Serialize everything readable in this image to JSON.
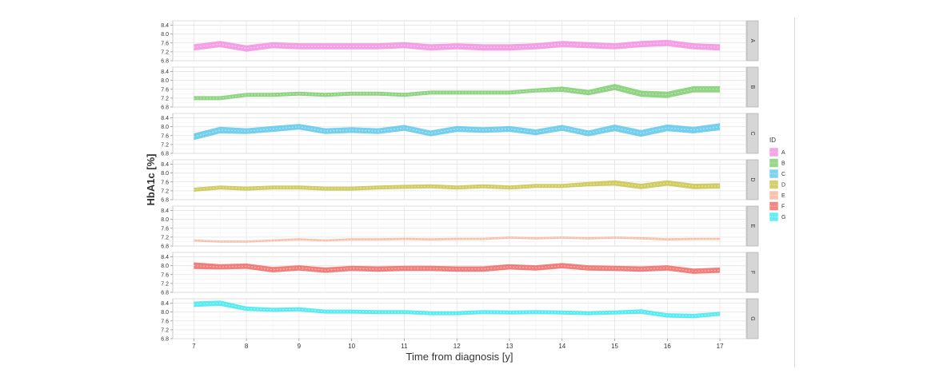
{
  "chart_data": {
    "type": "area",
    "xlabel": "Time from diagnosis [y]",
    "ylabel": "HbA1c [%]",
    "xlim": [
      6.6,
      17.5
    ],
    "ylim": [
      6.8,
      8.6
    ],
    "x_ticks": [
      7,
      8,
      9,
      10,
      11,
      12,
      13,
      14,
      15,
      16,
      17
    ],
    "y_ticks": [
      6.8,
      7.2,
      7.6,
      8.0,
      8.4
    ],
    "grid": true,
    "facets": "stacked, one panel per ID",
    "legend": {
      "title": "ID",
      "placement": "right"
    },
    "x": [
      7,
      7.5,
      8,
      8.5,
      9,
      9.5,
      10,
      10.5,
      11,
      11.5,
      12,
      12.5,
      13,
      13.5,
      14,
      14.5,
      15,
      15.5,
      16,
      16.5,
      17
    ],
    "series": [
      {
        "name": "A",
        "color": "#f28fe0",
        "mean": [
          7.4,
          7.55,
          7.35,
          7.5,
          7.45,
          7.45,
          7.45,
          7.45,
          7.5,
          7.4,
          7.45,
          7.4,
          7.4,
          7.45,
          7.55,
          7.5,
          7.45,
          7.55,
          7.6,
          7.45,
          7.4
        ],
        "halfwidth": [
          0.14,
          0.14,
          0.14,
          0.14,
          0.14,
          0.14,
          0.14,
          0.14,
          0.14,
          0.14,
          0.14,
          0.14,
          0.14,
          0.14,
          0.14,
          0.14,
          0.14,
          0.14,
          0.14,
          0.14,
          0.14
        ]
      },
      {
        "name": "B",
        "color": "#7dcc6e",
        "mean": [
          7.2,
          7.2,
          7.35,
          7.35,
          7.4,
          7.35,
          7.4,
          7.4,
          7.35,
          7.45,
          7.45,
          7.45,
          7.45,
          7.55,
          7.6,
          7.45,
          7.7,
          7.4,
          7.35,
          7.6,
          7.6
        ],
        "halfwidth": [
          0.09,
          0.09,
          0.09,
          0.09,
          0.09,
          0.09,
          0.09,
          0.09,
          0.09,
          0.09,
          0.09,
          0.09,
          0.09,
          0.09,
          0.12,
          0.12,
          0.14,
          0.14,
          0.14,
          0.14,
          0.14
        ]
      },
      {
        "name": "C",
        "color": "#5ec8ea",
        "mean": [
          7.55,
          7.85,
          7.8,
          7.9,
          8.0,
          7.8,
          7.85,
          7.8,
          7.95,
          7.7,
          7.9,
          7.85,
          7.9,
          7.75,
          7.95,
          7.7,
          7.95,
          7.7,
          7.95,
          7.85,
          8.0
        ],
        "halfwidth": [
          0.15,
          0.15,
          0.13,
          0.13,
          0.13,
          0.13,
          0.13,
          0.13,
          0.13,
          0.13,
          0.13,
          0.13,
          0.13,
          0.13,
          0.13,
          0.13,
          0.15,
          0.15,
          0.15,
          0.15,
          0.16
        ]
      },
      {
        "name": "D",
        "color": "#c9c44a",
        "mean": [
          7.25,
          7.35,
          7.3,
          7.35,
          7.35,
          7.3,
          7.3,
          7.35,
          7.38,
          7.4,
          7.35,
          7.4,
          7.35,
          7.42,
          7.42,
          7.5,
          7.55,
          7.4,
          7.55,
          7.4,
          7.42
        ],
        "halfwidth": [
          0.09,
          0.09,
          0.09,
          0.09,
          0.09,
          0.09,
          0.09,
          0.09,
          0.09,
          0.09,
          0.09,
          0.09,
          0.09,
          0.09,
          0.09,
          0.1,
          0.12,
          0.12,
          0.12,
          0.12,
          0.12
        ]
      },
      {
        "name": "E",
        "color": "#f5b49a",
        "mean": [
          7.05,
          7.0,
          7.0,
          7.05,
          7.1,
          7.05,
          7.1,
          7.1,
          7.12,
          7.1,
          7.12,
          7.12,
          7.18,
          7.15,
          7.18,
          7.15,
          7.18,
          7.15,
          7.1,
          7.12,
          7.12
        ],
        "halfwidth": [
          0.05,
          0.05,
          0.05,
          0.05,
          0.05,
          0.05,
          0.05,
          0.05,
          0.05,
          0.05,
          0.05,
          0.05,
          0.05,
          0.05,
          0.05,
          0.05,
          0.05,
          0.05,
          0.05,
          0.05,
          0.05
        ]
      },
      {
        "name": "F",
        "color": "#ee6a66",
        "mean": [
          8.0,
          7.95,
          7.98,
          7.82,
          7.9,
          7.8,
          7.88,
          7.85,
          7.88,
          7.88,
          7.85,
          7.85,
          7.95,
          7.9,
          8.0,
          7.9,
          7.88,
          7.85,
          7.9,
          7.75,
          7.8
        ],
        "halfwidth": [
          0.15,
          0.12,
          0.12,
          0.12,
          0.12,
          0.12,
          0.12,
          0.12,
          0.12,
          0.12,
          0.12,
          0.12,
          0.12,
          0.12,
          0.12,
          0.12,
          0.12,
          0.12,
          0.12,
          0.12,
          0.12
        ]
      },
      {
        "name": "G",
        "color": "#3ee8ef",
        "mean": [
          8.35,
          8.4,
          8.15,
          8.1,
          8.12,
          8.02,
          8.02,
          8.0,
          8.0,
          7.95,
          7.95,
          8.0,
          7.98,
          8.0,
          7.98,
          7.95,
          7.98,
          8.02,
          7.85,
          7.82,
          7.92
        ],
        "halfwidth": [
          0.12,
          0.12,
          0.1,
          0.09,
          0.09,
          0.09,
          0.09,
          0.09,
          0.09,
          0.09,
          0.09,
          0.09,
          0.09,
          0.09,
          0.09,
          0.09,
          0.09,
          0.1,
          0.1,
          0.1,
          0.09
        ]
      }
    ]
  }
}
